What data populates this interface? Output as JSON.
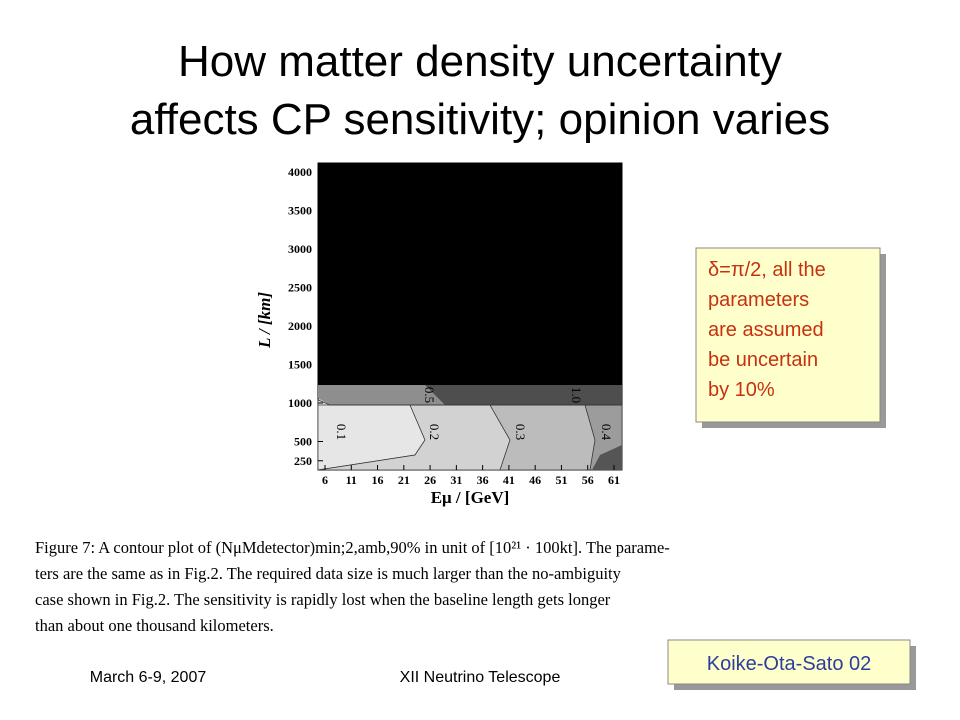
{
  "title": {
    "lines": [
      "How matter density uncertainty",
      "affects CP sensitivity; opinion varies"
    ]
  },
  "plot": {
    "y_label": "L / [km]",
    "x_label": "Eμ / [GeV]",
    "yticks": [
      250,
      500,
      1000,
      1500,
      2000,
      2500,
      3000,
      3500,
      4000
    ],
    "xticks": [
      6,
      11,
      16,
      21,
      26,
      31,
      36,
      41,
      46,
      51,
      56,
      61
    ],
    "contour_labels": [
      "0.1",
      "0.2",
      "0.3",
      "0.4",
      "0.5",
      "1.0"
    ]
  },
  "caption": {
    "lines": [
      "Figure 7:  A contour plot of (NμMdetector)min;2,amb,90% in unit of [10²¹ · 100kt].  The parame-",
      "ters are the same as in Fig.2.  The required data size is much larger than the no-ambiguity",
      "case shown in Fig.2.  The sensitivity is rapidly lost when the baseline length gets longer",
      "than about one thousand kilometers."
    ]
  },
  "note": {
    "lines": [
      "δ=π/2, all the",
      "parameters",
      "are assumed",
      "be uncertain",
      "by 10%"
    ]
  },
  "credit": "Koike-Ota-Sato 02",
  "footer": {
    "date": "March 6-9, 2007",
    "event": "XII Neutrino Telescope"
  }
}
